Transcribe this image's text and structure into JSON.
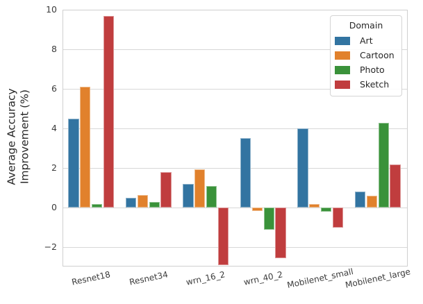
{
  "chart_data": {
    "type": "bar",
    "title": "",
    "xlabel": "",
    "ylabel": "Average Accuracy Improvement (%)",
    "ylabel_lines": [
      "Average Accuracy",
      "Improvement (%)"
    ],
    "categories": [
      "Resnet18",
      "Resnet34",
      "wrn_16_2",
      "wrn_40_2",
      "Mobilenet_small",
      "Mobilenet_large"
    ],
    "series": [
      {
        "name": "Art",
        "color": "#3274a1",
        "values": [
          4.5,
          0.5,
          1.2,
          3.5,
          4.0,
          0.8
        ]
      },
      {
        "name": "Cartoon",
        "color": "#e1812c",
        "values": [
          6.1,
          0.65,
          1.95,
          -0.15,
          0.2,
          0.6
        ]
      },
      {
        "name": "Photo",
        "color": "#3a923a",
        "values": [
          0.2,
          0.3,
          1.1,
          -1.1,
          -0.2,
          4.3
        ]
      },
      {
        "name": "Sketch",
        "color": "#c03d3e",
        "values": [
          9.7,
          1.8,
          -2.9,
          -2.55,
          -1.0,
          2.2
        ]
      }
    ],
    "ylim": [
      -2.9,
      10
    ],
    "yticks": [
      -2,
      0,
      2,
      4,
      6,
      8,
      10
    ],
    "grid": true,
    "legend": {
      "title": "Domain",
      "position": "upper right",
      "entries": [
        "Art",
        "Cartoon",
        "Photo",
        "Sketch"
      ]
    }
  }
}
